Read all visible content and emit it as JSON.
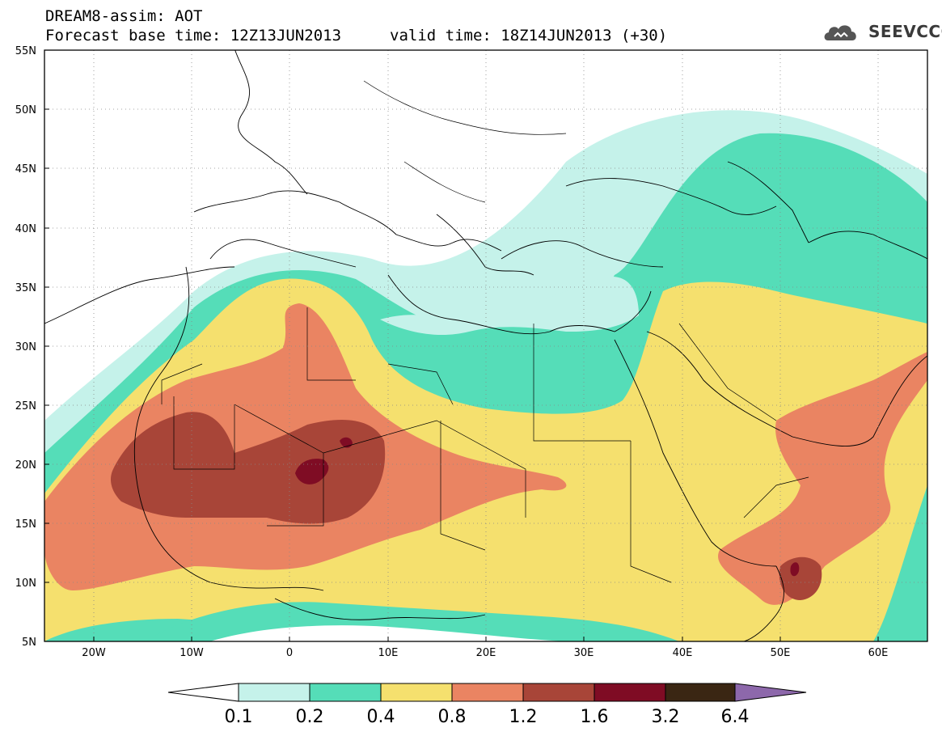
{
  "header": {
    "title": "DREAM8-assim: AOT",
    "base_time": "Forecast base time: 12Z13JUN2013",
    "valid_time": "valid time: 18Z14JUN2013 (+30)"
  },
  "logo": {
    "text": "SEEVCCC",
    "icon": "cloud-logo-icon"
  },
  "map": {
    "lon_range": [
      -25,
      65
    ],
    "lat_range": [
      5,
      55
    ],
    "lat_labels": [
      "55N",
      "50N",
      "45N",
      "40N",
      "35N",
      "30N",
      "25N",
      "20N",
      "15N",
      "10N",
      "5N"
    ],
    "lon_labels": [
      "20W",
      "10W",
      "0",
      "10E",
      "20E",
      "30E",
      "40E",
      "50E",
      "60E"
    ]
  },
  "colorbar": {
    "labels": [
      "0.1",
      "0.2",
      "0.4",
      "0.8",
      "1.2",
      "1.6",
      "3.2",
      "6.4"
    ],
    "colors": [
      "#ffffff",
      "#c5f2ea",
      "#55ddb8",
      "#f5e06e",
      "#ea8462",
      "#a84538",
      "#7f0c24",
      "#3a2613",
      "#8d68ab"
    ]
  }
}
